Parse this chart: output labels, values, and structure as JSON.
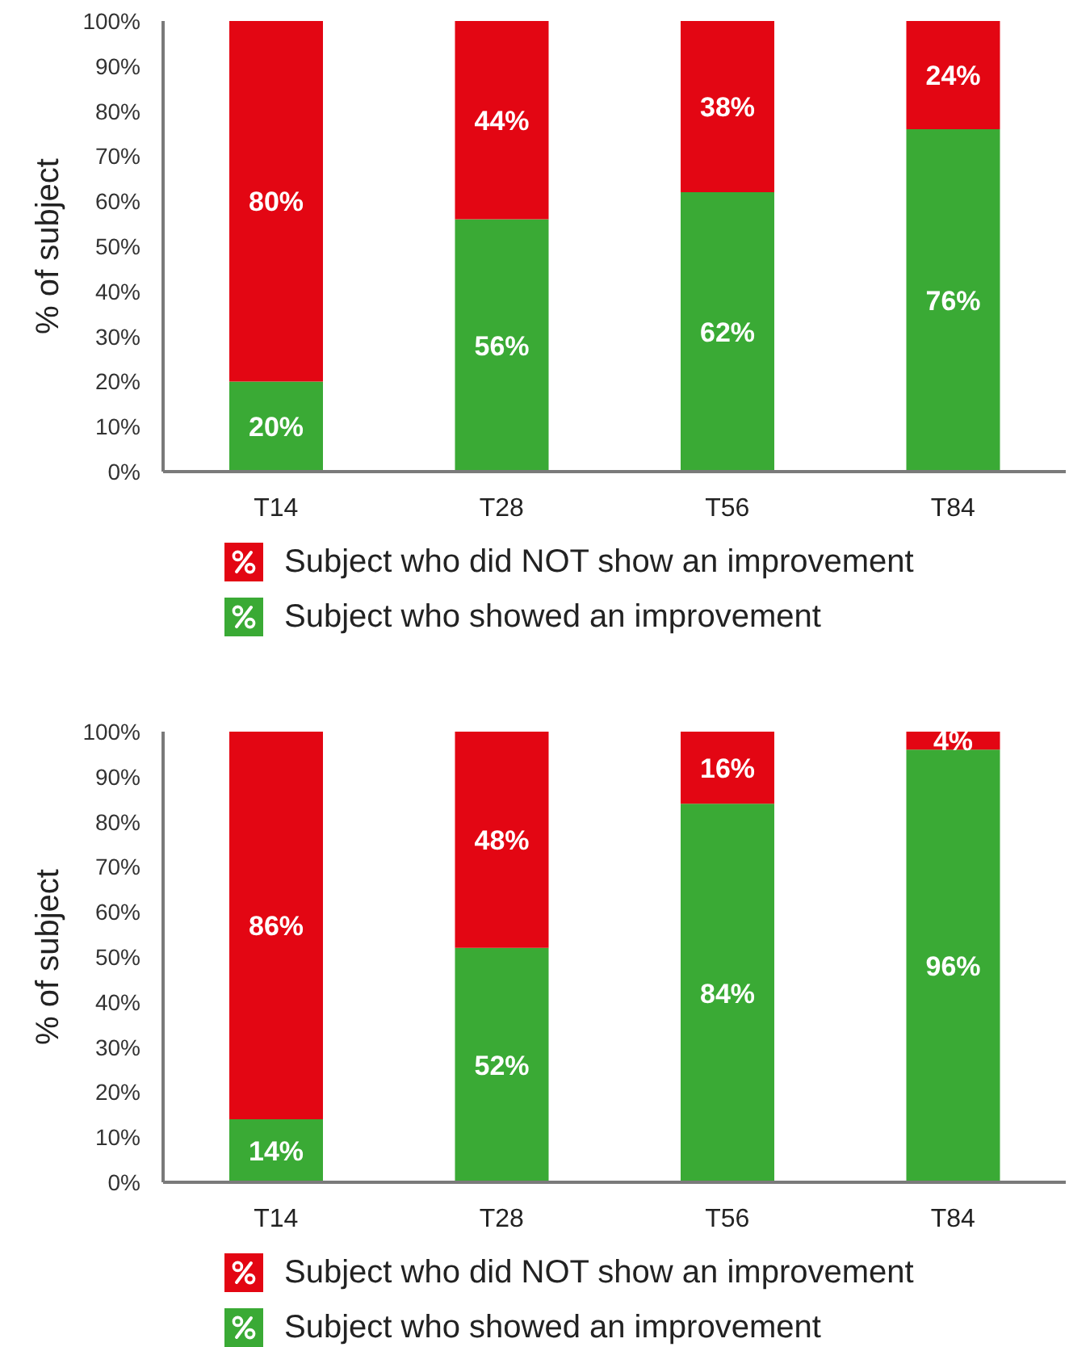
{
  "chart_data": [
    {
      "type": "bar",
      "stacked": true,
      "categories": [
        "T14",
        "T28",
        "T56",
        "T84"
      ],
      "ylabel": "% of subject",
      "ylim": [
        0,
        100
      ],
      "yticks": [
        {
          "value": 0,
          "label": "0%"
        },
        {
          "value": 10,
          "label": "10%"
        },
        {
          "value": 20,
          "label": "20%"
        },
        {
          "value": 30,
          "label": "30%"
        },
        {
          "value": 40,
          "label": "40%"
        },
        {
          "value": 50,
          "label": "50%"
        },
        {
          "value": 60,
          "label": "60%"
        },
        {
          "value": 70,
          "label": "70%"
        },
        {
          "value": 80,
          "label": "80%"
        },
        {
          "value": 90,
          "label": "90%"
        },
        {
          "value": 100,
          "label": "100%"
        }
      ],
      "legend": "bottom",
      "series": [
        {
          "name": "Subject who showed an improvement",
          "color": "#3aaa35",
          "values": [
            20,
            56,
            62,
            76
          ],
          "value_labels": [
            "20%",
            "56%",
            "62%",
            "76%"
          ]
        },
        {
          "name": "Subject who did NOT show an improvement",
          "color": "#e30613",
          "values": [
            80,
            44,
            38,
            24
          ],
          "value_labels": [
            "80%",
            "44%",
            "38%",
            "24%"
          ]
        }
      ]
    },
    {
      "type": "bar",
      "stacked": true,
      "categories": [
        "T14",
        "T28",
        "T56",
        "T84"
      ],
      "ylabel": "% of subject",
      "ylim": [
        0,
        100
      ],
      "yticks": [
        {
          "value": 0,
          "label": "0%"
        },
        {
          "value": 10,
          "label": "10%"
        },
        {
          "value": 20,
          "label": "20%"
        },
        {
          "value": 30,
          "label": "30%"
        },
        {
          "value": 40,
          "label": "40%"
        },
        {
          "value": 50,
          "label": "50%"
        },
        {
          "value": 60,
          "label": "60%"
        },
        {
          "value": 70,
          "label": "70%"
        },
        {
          "value": 80,
          "label": "80%"
        },
        {
          "value": 90,
          "label": "90%"
        },
        {
          "value": 100,
          "label": "100%"
        }
      ],
      "legend": "bottom",
      "series": [
        {
          "name": "Subject who showed an improvement",
          "color": "#3aaa35",
          "values": [
            14,
            52,
            84,
            96
          ],
          "value_labels": [
            "14%",
            "52%",
            "84%",
            "96%"
          ]
        },
        {
          "name": "Subject who did NOT show an improvement",
          "color": "#e30613",
          "values": [
            86,
            48,
            16,
            4
          ],
          "value_labels": [
            "86%",
            "48%",
            "16%",
            "4%"
          ]
        }
      ]
    }
  ]
}
